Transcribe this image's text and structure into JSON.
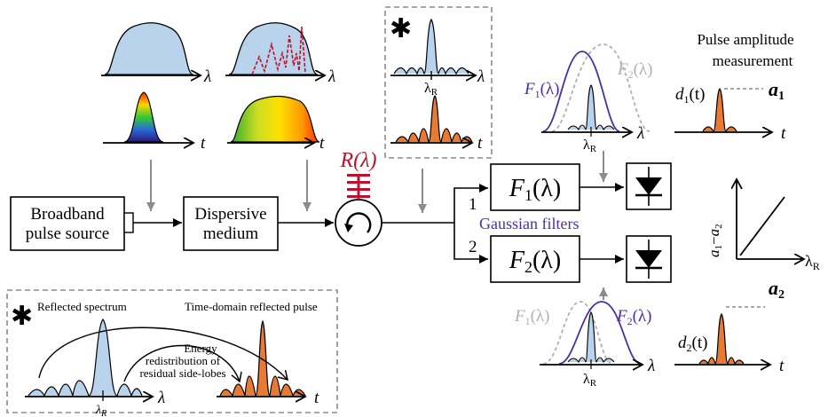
{
  "blocks": {
    "source_line1": "Broadband",
    "source_line2": "pulse source",
    "dispersive_line1": "Dispersive",
    "dispersive_line2": "medium"
  },
  "reflector_label": "R(λ)",
  "filters": {
    "f1": "F1(λ)",
    "f2": "F2(λ)",
    "gaussian_label": "Gaussian filters",
    "branch1": "1",
    "branch2": "2"
  },
  "axes": {
    "lambda": "λ",
    "t": "t",
    "lambda_r": "λR"
  },
  "measurement": {
    "title_line1": "Pulse amplitude",
    "title_line2": "measurement",
    "d1": "d1(t)",
    "d2": "d2(t)",
    "a1": "a1",
    "a2": "a2",
    "diff_axis": "a1−a2"
  },
  "inset": {
    "reflected_spectrum": "Reflected spectrum",
    "time_domain": "Time-domain reflected pulse",
    "energy_line1": "Energy",
    "energy_line2": "redistribution of",
    "energy_line3": "residual side-lobes",
    "lambda_r": "λR"
  },
  "star": "✱",
  "colors": {
    "blue_fill": "#b9d3ec",
    "orange_fill": "#e87a33",
    "filter_purple": "#4a2fa8",
    "filter_gray": "#b0b0b0",
    "reflector_red": "#c0102b",
    "arrow_gray": "#8c8c8c"
  }
}
